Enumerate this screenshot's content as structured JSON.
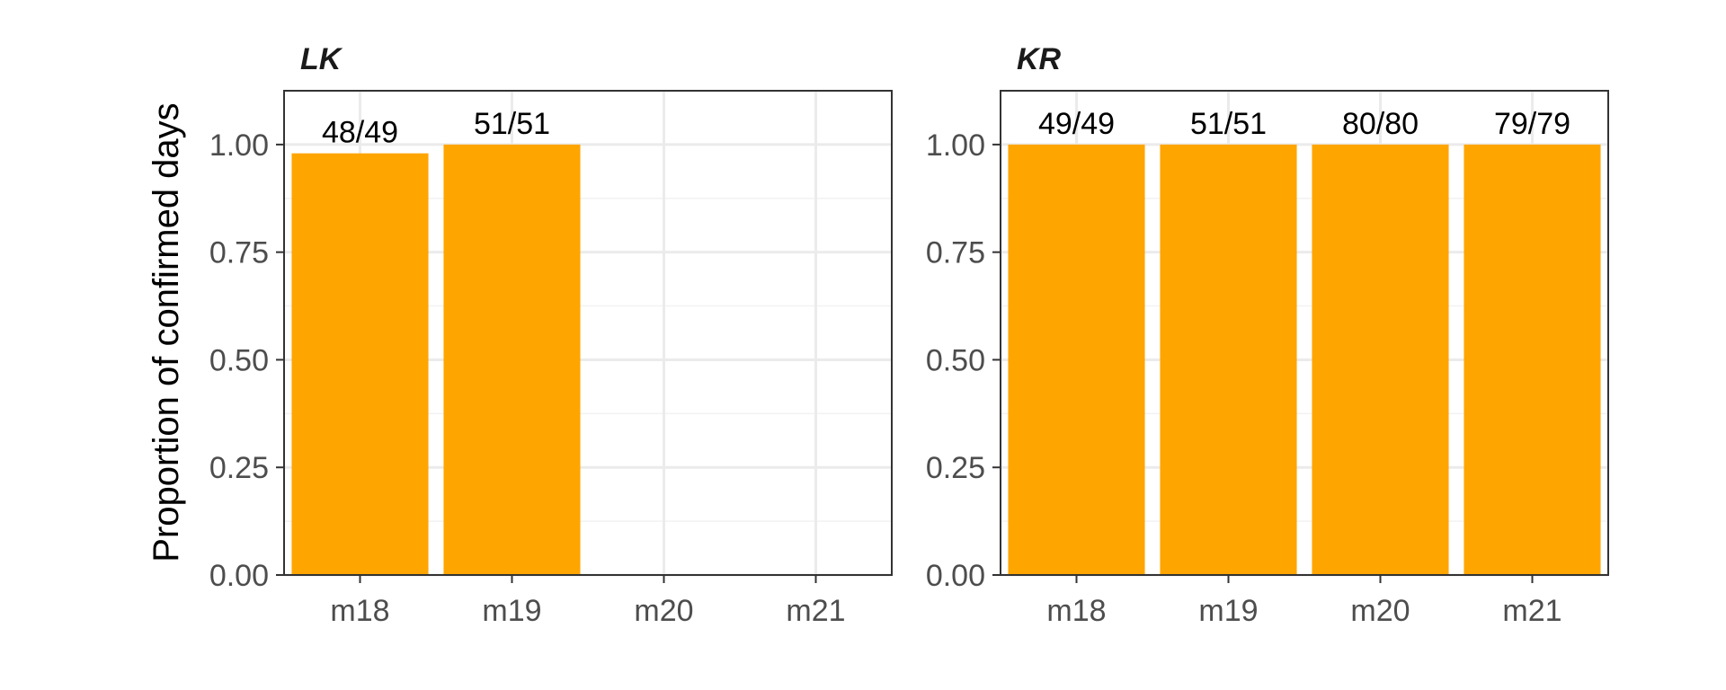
{
  "chart_data": {
    "type": "bar",
    "ylabel": "Proportion of confirmed days",
    "ylim": [
      0,
      1.125
    ],
    "yticks": [
      "0.00",
      "0.25",
      "0.50",
      "0.75",
      "1.00"
    ],
    "ytick_values": [
      0,
      0.25,
      0.5,
      0.75,
      1.0
    ],
    "grid": true,
    "bar_color": "#FFA500",
    "categories": [
      "m18",
      "m19",
      "m20",
      "m21"
    ],
    "panels": [
      {
        "title": "LK",
        "values": [
          0.9796,
          1.0,
          null,
          null
        ],
        "labels": [
          "48/49",
          "51/51",
          "",
          ""
        ]
      },
      {
        "title": "KR",
        "values": [
          1.0,
          1.0,
          1.0,
          1.0
        ],
        "labels": [
          "49/49",
          "51/51",
          "80/80",
          "79/79"
        ]
      }
    ]
  }
}
